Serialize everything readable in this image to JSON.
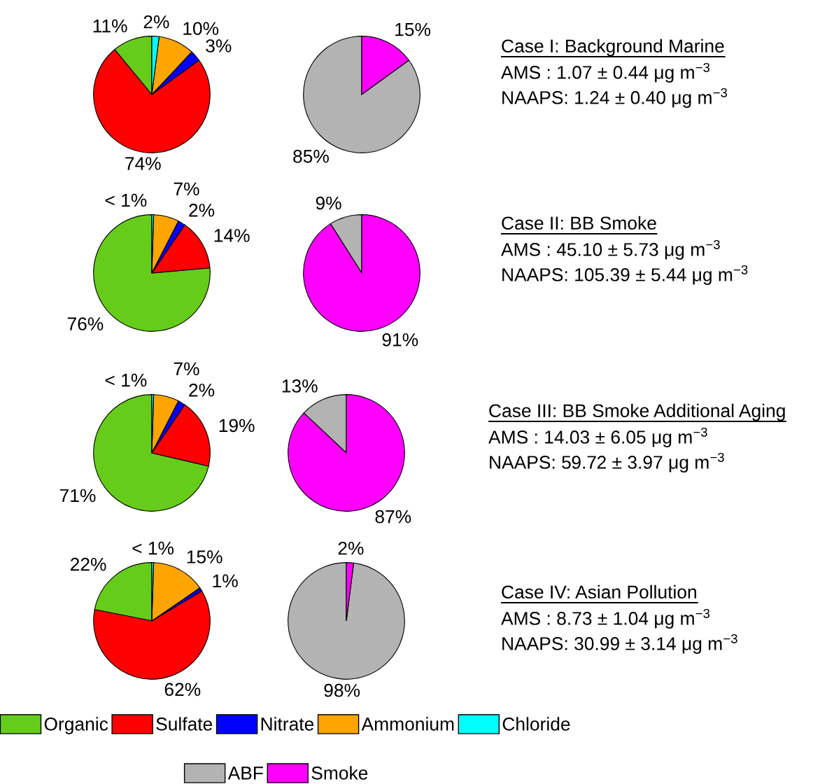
{
  "chart_data": [
    {
      "type": "pie",
      "categories": [
        "Organic",
        "Sulfate",
        "Nitrate",
        "Ammonium",
        "Chloride"
      ],
      "values": [
        11,
        74,
        3,
        10,
        2
      ],
      "value_labels": [
        "11%",
        "74%",
        "3%",
        "10%",
        "2%"
      ],
      "colors": [
        "#66cc1a",
        "#ff0000",
        "#0000ff",
        "#ffa500",
        "#00ffff"
      ],
      "legend": "bottom"
    },
    {
      "type": "pie",
      "categories": [
        "ABF",
        "Smoke"
      ],
      "values": [
        85,
        15
      ],
      "value_labels": [
        "85%",
        "15%"
      ],
      "colors": [
        "#b3b3b3",
        "#ff00ff"
      ],
      "legend": "bottom"
    },
    {
      "type": "other",
      "title": "Case I: Background Marine",
      "annotations": [
        "AMS : 1.07 ± 0.44 μg m$^{−3}$",
        "NAAPS: 1.24 ± 0.40 μg m$^{−3}$"
      ]
    },
    {
      "type": "pie",
      "categories": [
        null,
        null,
        null,
        null,
        null
      ],
      "values": [
        76,
        14,
        2,
        7,
        0.5
      ],
      "value_labels": [
        "76%",
        "14%",
        "2%",
        "7%",
        "< 1%"
      ],
      "colors": [
        "#66cc1a",
        "#ff0000",
        "#0000ff",
        "#ffa500",
        "#00ffff"
      ]
    },
    {
      "type": "pie",
      "categories": [
        null,
        null
      ],
      "values": [
        9,
        91
      ],
      "value_labels": [
        "9%",
        "91%"
      ],
      "colors": [
        "#b3b3b3",
        "#ff00ff"
      ]
    },
    {
      "type": "other",
      "title": "Case II: BB Smoke",
      "annotations": [
        "AMS : 45.10 ± 5.73 μg m$^{−3}$",
        "NAAPS: 105.39 ± 5.44 μg m$^{−3}$"
      ]
    },
    {
      "type": "pie",
      "categories": [
        null,
        null,
        null,
        null,
        null
      ],
      "values": [
        71,
        19,
        2,
        7,
        0.5
      ],
      "value_labels": [
        "71%",
        "19%",
        "2%",
        "7%",
        "< 1%"
      ],
      "colors": [
        "#66cc1a",
        "#ff0000",
        "#0000ff",
        "#ffa500",
        "#00ffff"
      ]
    },
    {
      "type": "pie",
      "categories": [
        null,
        null
      ],
      "values": [
        13,
        87
      ],
      "value_labels": [
        "13%",
        "87%"
      ],
      "colors": [
        "#b3b3b3",
        "#ff00ff"
      ]
    },
    {
      "type": "other",
      "title": "Case III: BB Smoke Additional Aging",
      "annotations": [
        "AMS : 14.03 ± 6.05 μg m$^{−3}$",
        "NAAPS: 59.72 ± 3.97 μg m$^{−3}$"
      ]
    },
    {
      "type": "pie",
      "categories": [
        null,
        null,
        null,
        null,
        null
      ],
      "values": [
        22,
        62,
        1,
        15,
        0.5
      ],
      "value_labels": [
        "22%",
        "62%",
        "1%",
        "15%",
        "< 1%"
      ],
      "colors": [
        "#66cc1a",
        "#ff0000",
        "#0000ff",
        "#ffa500",
        "#00ffff"
      ]
    },
    {
      "type": "pie",
      "categories": [
        null,
        null
      ],
      "values": [
        98,
        2
      ],
      "value_labels": [
        "98%",
        "2%"
      ],
      "colors": [
        "#b3b3b3",
        "#ff00ff"
      ]
    },
    {
      "type": "other",
      "title": "Case IV: Asian Pollution",
      "annotations": [
        "AMS : 8.73 ± 1.04 μg m$^{−3}$",
        "NAAPS: 30.99 ± 3.14 μg m$^{−3}$"
      ]
    }
  ]
}
